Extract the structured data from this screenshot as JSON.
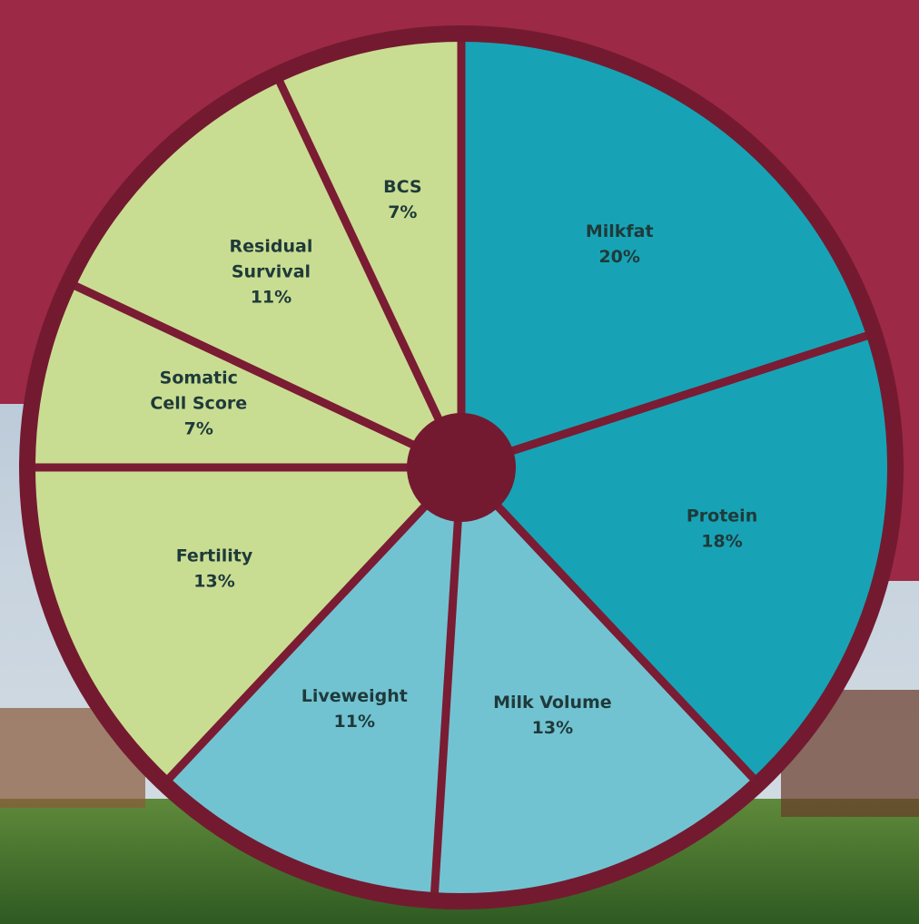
{
  "chart_data": {
    "type": "pie",
    "categories": [
      "Milkfat",
      "Protein",
      "Milk Volume",
      "Liveweight",
      "Fertility",
      "Somatic Cell Score",
      "Residual Survival",
      "BCS"
    ],
    "values": [
      20,
      18,
      13,
      11,
      13,
      7,
      11,
      7
    ],
    "value_labels": [
      "20%",
      "18%",
      "13%",
      "11%",
      "13%",
      "7%",
      "11%",
      "7%"
    ],
    "colors": [
      "#17a3b5",
      "#17a3b5",
      "#72c3d2",
      "#72c3d2",
      "#c9dd92",
      "#c9dd92",
      "#c9dd92",
      "#c9dd92"
    ]
  }
}
